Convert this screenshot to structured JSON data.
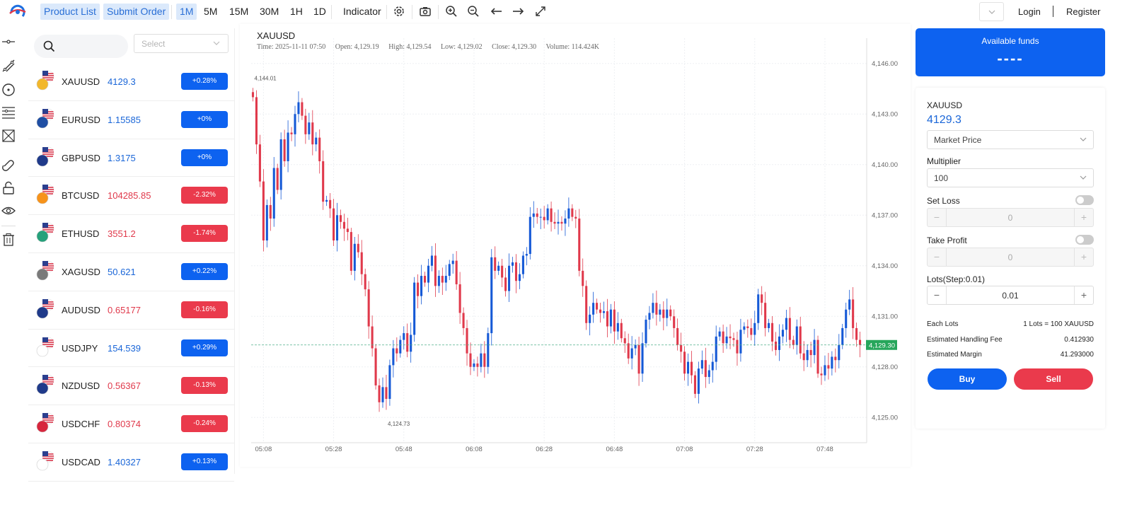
{
  "topbar": {
    "product_list": "Product List",
    "submit_order": "Submit Order",
    "intervals": [
      "1M",
      "5M",
      "15M",
      "30M",
      "1H",
      "1D"
    ],
    "active_interval": "1M",
    "indicator": "Indicator",
    "login": "Login",
    "register": "Register"
  },
  "left_panel": {
    "search_placeholder": "",
    "select_placeholder": "Select",
    "products": [
      {
        "symbol": "XAUUSD",
        "price": "4129.3",
        "change": "+0.28%",
        "direction": "up",
        "icon": "gold-icon"
      },
      {
        "symbol": "EURUSD",
        "price": "1.15585",
        "change": "+0%",
        "direction": "up",
        "icon": "eu-flag-icon"
      },
      {
        "symbol": "GBPUSD",
        "price": "1.3175",
        "change": "+0%",
        "direction": "up",
        "icon": "uk-flag-icon"
      },
      {
        "symbol": "BTCUSD",
        "price": "104285.85",
        "change": "-2.32%",
        "direction": "down",
        "icon": "bitcoin-icon"
      },
      {
        "symbol": "ETHUSD",
        "price": "3551.2",
        "change": "-1.74%",
        "direction": "down",
        "icon": "tether-icon"
      },
      {
        "symbol": "XAGUSD",
        "price": "50.621",
        "change": "+0.22%",
        "direction": "up",
        "icon": "silver-icon"
      },
      {
        "symbol": "AUDUSD",
        "price": "0.65177",
        "change": "-0.16%",
        "direction": "down",
        "icon": "australia-flag-icon"
      },
      {
        "symbol": "USDJPY",
        "price": "154.539",
        "change": "+0.29%",
        "direction": "up",
        "icon": "japan-flag-icon"
      },
      {
        "symbol": "NZDUSD",
        "price": "0.56367",
        "change": "-0.13%",
        "direction": "down",
        "icon": "new-zealand-flag-icon"
      },
      {
        "symbol": "USDCHF",
        "price": "0.80374",
        "change": "-0.24%",
        "direction": "down",
        "icon": "swiss-flag-icon"
      },
      {
        "symbol": "USDCAD",
        "price": "1.40327",
        "change": "+0.13%",
        "direction": "up",
        "icon": "canada-flag-icon"
      }
    ]
  },
  "chart_header": {
    "symbol": "XAUUSD",
    "time": "Time: 2025-11-11 07:50",
    "open": "Open: 4,129.19",
    "high": "High: 4,129.54",
    "low": "Low: 4,129.02",
    "close": "Close: 4,129.30",
    "volume": "Volume: 114.424K"
  },
  "chart_data": {
    "type": "candlestick",
    "symbol": "XAUUSD",
    "x_start": "05:05",
    "minutes_per_candle": 1,
    "x_tick_labels": [
      "05:08",
      "05:28",
      "05:48",
      "06:08",
      "06:28",
      "06:48",
      "07:08",
      "07:28",
      "07:48"
    ],
    "y_tick_labels": [
      "4,146.00",
      "4,143.00",
      "4,140.00",
      "4,137.00",
      "4,134.00",
      "4,131.00",
      "4,128.00",
      "4,125.00"
    ],
    "ylim": [
      4123.5,
      4147.5
    ],
    "last_price": 4129.3,
    "last_price_label": "4,129.30",
    "max_label": "4,144.01",
    "min_label": "4,124.73",
    "grid": true,
    "up_color": "#1559d6",
    "down_color": "#e0394b",
    "closes": [
      4144.0,
      4141.2,
      4139.0,
      4135.5,
      4137.6,
      4136.8,
      4139.8,
      4138.5,
      4141.5,
      4140.2,
      4141.9,
      4141.8,
      4143.0,
      4143.7,
      4142.9,
      4141.8,
      4142.5,
      4141.2,
      4141.6,
      4140.2,
      4137.8,
      4137.9,
      4137.4,
      4135.5,
      4137.0,
      4136.6,
      4136.2,
      4136.0,
      4133.7,
      4135.3,
      4134.8,
      4133.5,
      4132.6,
      4130.4,
      4129.1,
      4126.9,
      4125.9,
      4126.8,
      4126.1,
      4128.1,
      4129.1,
      4128.8,
      4129.6,
      4130.0,
      4128.9,
      4129.9,
      4133.0,
      4132.2,
      4133.4,
      4133.0,
      4134.0,
      4134.6,
      4132.8,
      4133.4,
      4133.0,
      4133.4,
      4134.1,
      4134.3,
      4132.9,
      4131.2,
      4130.3,
      4128.8,
      4128.0,
      4128.2,
      4128.0,
      4128.8,
      4128.0,
      4130.0,
      4134.5,
      4133.7,
      4134.0,
      4133.3,
      4132.5,
      4134.0,
      4134.2,
      4133.1,
      4133.5,
      4134.6,
      4134.7,
      4136.9,
      4137.1,
      4136.9,
      4136.9,
      4136.7,
      4137.4,
      4136.6,
      4136.5,
      4136.6,
      4136.5,
      4136.8,
      4137.4,
      4136.9,
      4136.8,
      4133.7,
      4132.8,
      4130.6,
      4131.1,
      4131.8,
      4131.4,
      4131.2,
      4131.3,
      4130.4,
      4131.4,
      4130.1,
      4130.6,
      4129.7,
      4129.4,
      4128.5,
      4129.1,
      4129.3,
      4127.6,
      4129.4,
      4130.8,
      4131.2,
      4131.8,
      4131.1,
      4131.4,
      4130.9,
      4131.4,
      4131.0,
      4130.3,
      4129.3,
      4128.9,
      4127.6,
      4128.3,
      4127.5,
      4126.4,
      4127.9,
      4128.4,
      4127.4,
      4127.8,
      4128.3,
      4129.8,
      4130.1,
      4129.4,
      4129.8,
      4129.7,
      4129.6,
      4128.8,
      4130.2,
      4130.4,
      4130.3,
      4129.9,
      4130.6,
      4132.3,
      4131.8,
      4130.3,
      4130.6,
      4129.5,
      4129.0,
      4129.8,
      4130.2,
      4130.9,
      4129.6,
      4129.3,
      4130.4,
      4128.8,
      4128.4,
      4129.0,
      4128.7,
      4129.6,
      4127.6,
      4127.5,
      4128.1,
      4127.9,
      4128.6,
      4128.4,
      4129.3,
      4130.3,
      4131.4,
      4132.0,
      4130.3,
      4129.6,
      4129.3
    ]
  },
  "order_panel": {
    "funds_label": "Available funds",
    "funds_value": "----",
    "symbol": "XAUUSD",
    "price": "4129.3",
    "price_type": "Market Price",
    "multiplier_label": "Multiplier",
    "multiplier_value": "100",
    "set_loss_label": "Set Loss",
    "set_loss_value": "0",
    "take_profit_label": "Take Profit",
    "take_profit_value": "0",
    "lots_label": "Lots(Step:0.01)",
    "lots_value": "0.01",
    "each_lots_label": "Each Lots",
    "each_lots_value": "1 Lots = 100 XAUUSD",
    "fee_label": "Estimated Handling Fee",
    "fee_value": "0.412930",
    "margin_label": "Estimated Margin",
    "margin_value": "41.293000",
    "buy_label": "Buy",
    "sell_label": "Sell",
    "minus": "−",
    "plus": "+"
  },
  "colors": {
    "accent": "#0d62f0",
    "up": "#1559d6",
    "down": "#e0394b",
    "sell_button": "#ea3a4c",
    "last_price_tag": "#26a65b"
  }
}
